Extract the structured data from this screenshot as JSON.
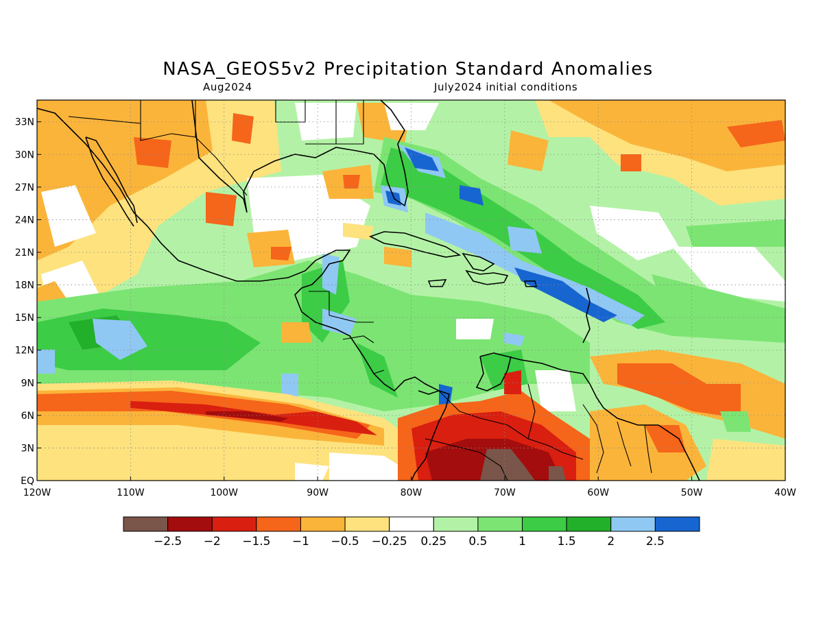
{
  "title": "NASA_GEOS5v2 Precipitation Standard Anomalies",
  "subtitle_left": "Aug2024",
  "subtitle_right": "July2024 initial conditions",
  "map": {
    "lon_range": [
      -120,
      -40
    ],
    "lat_range": [
      0,
      35
    ],
    "lon_labels": [
      "120W",
      "110W",
      "100W",
      "90W",
      "80W",
      "70W",
      "60W",
      "50W",
      "40W"
    ],
    "lat_labels": [
      "EQ",
      "3N",
      "6N",
      "9N",
      "12N",
      "15N",
      "18N",
      "21N",
      "24N",
      "27N",
      "30N",
      "33N"
    ]
  },
  "colorbar": {
    "colors": [
      "#7a554a",
      "#a30d0d",
      "#d91f10",
      "#f5651a",
      "#fbb43a",
      "#fde27e",
      "#ffffff",
      "#b3f2a6",
      "#7ce473",
      "#3ccc46",
      "#22b02a",
      "#90c8f4",
      "#1765d0"
    ],
    "labels": [
      "−2.5",
      "−2",
      "−1.5",
      "−1",
      "−0.5",
      "−0.25",
      "0.25",
      "0.5",
      "1",
      "1.5",
      "2",
      "2.5"
    ]
  },
  "regions": [
    {
      "lon": -115,
      "lat": 26,
      "color": "#fde27e"
    },
    {
      "lon": -105,
      "lat": 29,
      "color": "#fbb43a"
    },
    {
      "lon": -104,
      "lat": 30,
      "color": "#f5651a"
    },
    {
      "lon": -95,
      "lat": 33,
      "color": "#fbb43a"
    },
    {
      "lon": -85,
      "lat": 28,
      "color": "#fbb43a"
    },
    {
      "lon": -78,
      "lat": 31,
      "color": "#3ccc46"
    },
    {
      "lon": -78,
      "lat": 28,
      "color": "#1765d0"
    },
    {
      "lon": -75,
      "lat": 24,
      "color": "#3ccc46"
    },
    {
      "lon": -70,
      "lat": 21,
      "color": "#90c8f4"
    },
    {
      "lon": -63,
      "lat": 18,
      "color": "#90c8f4"
    },
    {
      "lon": -60,
      "lat": 16,
      "color": "#1765d0"
    },
    {
      "lon": -55,
      "lat": 30,
      "color": "#fbb43a"
    },
    {
      "lon": -45,
      "lat": 31,
      "color": "#f5651a"
    },
    {
      "lon": -48,
      "lat": 24,
      "color": "#7ce473"
    },
    {
      "lon": -110,
      "lat": 13,
      "color": "#3ccc46"
    },
    {
      "lon": -110,
      "lat": 13,
      "color": "#90c8f4"
    },
    {
      "lon": -95,
      "lat": 15,
      "color": "#3ccc46"
    },
    {
      "lon": -88,
      "lat": 12,
      "color": "#7ce473"
    },
    {
      "lon": -85,
      "lat": 10,
      "color": "#3ccc46"
    },
    {
      "lon": -78,
      "lat": 16,
      "color": "#b3f2a6"
    },
    {
      "lon": -70,
      "lat": 13,
      "color": "#7ce473"
    },
    {
      "lon": -50,
      "lat": 8,
      "color": "#fbb43a"
    },
    {
      "lon": -55,
      "lat": 8,
      "color": "#f5651a"
    },
    {
      "lon": -110,
      "lat": 7,
      "color": "#f5651a"
    },
    {
      "lon": -95,
      "lat": 6,
      "color": "#d91f10"
    },
    {
      "lon": -105,
      "lat": 3,
      "color": "#fde27e"
    },
    {
      "lon": -72,
      "lat": 3,
      "color": "#d91f10"
    },
    {
      "lon": -70,
      "lat": 1,
      "color": "#a30d0d"
    },
    {
      "lon": -68,
      "lat": 0.5,
      "color": "#7a554a"
    },
    {
      "lon": -55,
      "lat": 3,
      "color": "#fbb43a"
    },
    {
      "lon": -92,
      "lat": 22,
      "color": "#fbb43a"
    },
    {
      "lon": -100,
      "lat": 24,
      "color": "#f5651a"
    }
  ]
}
